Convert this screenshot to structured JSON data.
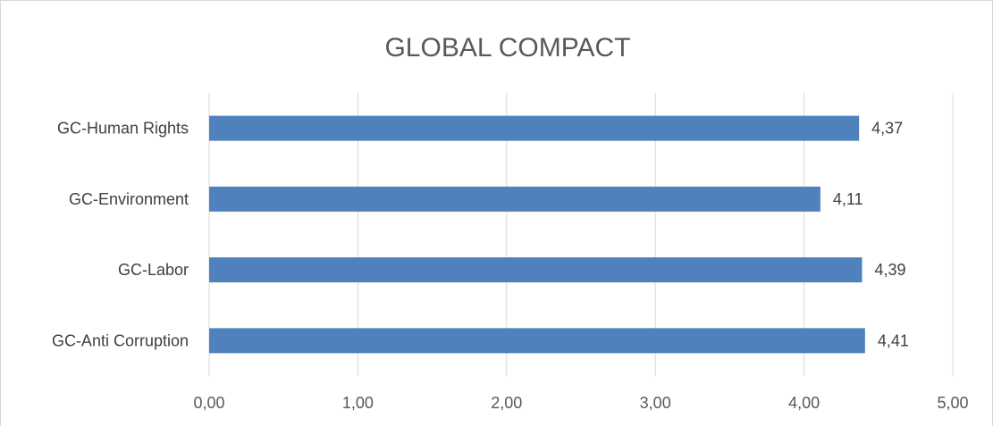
{
  "chart_data": {
    "type": "bar",
    "orientation": "horizontal",
    "title": "GLOBAL COMPACT",
    "categories": [
      "GC-Human Rights",
      "GC-Environment",
      "GC-Labor",
      "GC-Anti Corruption"
    ],
    "values": [
      4.37,
      4.11,
      4.39,
      4.41
    ],
    "data_labels": [
      "4,37",
      "4,11",
      "4,39",
      "4,41"
    ],
    "xlim": [
      0,
      5
    ],
    "x_ticks": [
      0,
      1,
      2,
      3,
      4,
      5
    ],
    "x_tick_labels": [
      "0,00",
      "1,00",
      "2,00",
      "3,00",
      "4,00",
      "5,00"
    ],
    "xlabel": "",
    "ylabel": "",
    "grid": true,
    "legend": "none",
    "bar_color": "#4f81bd"
  }
}
